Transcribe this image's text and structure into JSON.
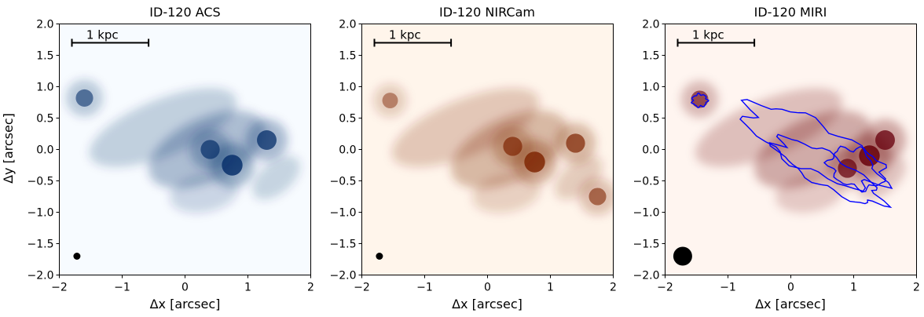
{
  "chart_data": [
    {
      "type": "heatmap",
      "title": "ID-120 ACS",
      "xlabel": "Δx [arcsec]",
      "ylabel": "Δy [arcsec]",
      "xlim": [
        -2,
        2
      ],
      "ylim": [
        -2,
        2
      ],
      "x_ticks": [
        "−2",
        "−1",
        "0",
        "1",
        "2"
      ],
      "y_ticks": [
        "−2.0",
        "−1.5",
        "−1.0",
        "−0.5",
        "0.0",
        "0.5",
        "1.0",
        "1.5",
        "2.0"
      ],
      "colormap": "Blues",
      "colormap_dark": "#08306b",
      "colormap_light": "#f7fbff",
      "scale_bar": {
        "label": "1 kpc",
        "x_start": -1.8,
        "x_end": -0.58,
        "y": 1.7
      },
      "beam": {
        "x": -1.72,
        "y": -1.7,
        "diameter_arcsec": 0.11
      },
      "emission_peaks": [
        {
          "x": 0.75,
          "y": -0.25,
          "strength": 1.0
        },
        {
          "x": 0.4,
          "y": 0.0,
          "strength": 0.85
        },
        {
          "x": 1.3,
          "y": 0.15,
          "strength": 0.9
        },
        {
          "x": -1.6,
          "y": 0.82,
          "strength": 0.7
        }
      ]
    },
    {
      "type": "heatmap",
      "title": "ID-120 NIRCam",
      "xlabel": "Δx [arcsec]",
      "ylabel": "",
      "xlim": [
        -2,
        2
      ],
      "ylim": [
        -2,
        2
      ],
      "x_ticks": [
        "−2",
        "−1",
        "0",
        "1",
        "2"
      ],
      "y_ticks": [
        "−2.0",
        "−1.5",
        "−1.0",
        "−0.5",
        "0.0",
        "0.5",
        "1.0",
        "1.5",
        "2.0"
      ],
      "colormap": "Oranges",
      "colormap_dark": "#7f2704",
      "colormap_light": "#fff5eb",
      "scale_bar": {
        "label": "1 kpc",
        "x_start": -1.8,
        "x_end": -0.58,
        "y": 1.7
      },
      "beam": {
        "x": -1.72,
        "y": -1.7,
        "diameter_arcsec": 0.11
      },
      "emission_peaks": [
        {
          "x": 0.75,
          "y": -0.2,
          "strength": 1.0
        },
        {
          "x": 0.4,
          "y": 0.05,
          "strength": 0.85
        },
        {
          "x": 1.4,
          "y": 0.1,
          "strength": 0.85
        },
        {
          "x": 1.75,
          "y": -0.75,
          "strength": 0.7
        },
        {
          "x": -1.55,
          "y": 0.78,
          "strength": 0.55
        }
      ]
    },
    {
      "type": "heatmap",
      "title": "ID-120 MIRI",
      "xlabel": "Δx [arcsec]",
      "ylabel": "",
      "xlim": [
        -2,
        2
      ],
      "ylim": [
        -2,
        2
      ],
      "x_ticks": [
        "−2",
        "−1",
        "0",
        "1",
        "2"
      ],
      "y_ticks": [
        "−2.0",
        "−1.5",
        "−1.0",
        "−0.5",
        "0.0",
        "0.5",
        "1.0",
        "1.5",
        "2.0"
      ],
      "colormap": "Reds",
      "colormap_dark": "#67000d",
      "colormap_light": "#fff5f0",
      "contour_color": "#0000ff",
      "scale_bar": {
        "label": "1 kpc",
        "x_start": -1.8,
        "x_end": -0.58,
        "y": 1.7
      },
      "beam": {
        "x": -1.72,
        "y": -1.7,
        "diameter_arcsec": 0.3
      },
      "emission_peaks": [
        {
          "x": 1.25,
          "y": -0.1,
          "strength": 1.0
        },
        {
          "x": 1.5,
          "y": 0.15,
          "strength": 0.9
        },
        {
          "x": 0.9,
          "y": -0.3,
          "strength": 0.85
        },
        {
          "x": -1.45,
          "y": 0.8,
          "strength": 0.7
        }
      ]
    }
  ]
}
